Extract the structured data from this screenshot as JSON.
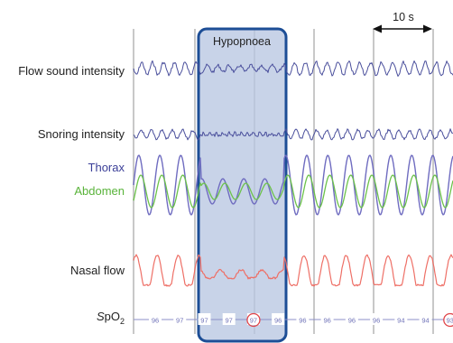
{
  "chart_data": {
    "type": "line",
    "title": "",
    "xlabel": "",
    "ylabel": "",
    "time_scale_label": "10 s",
    "event_label": "Hypopnoea",
    "series": [
      {
        "name": "Flow sound intensity",
        "color": "#4a4f9c"
      },
      {
        "name": "Snoring intensity",
        "color": "#4a4f9c"
      },
      {
        "name": "Thorax",
        "color": "#6f6cc0"
      },
      {
        "name": "Abdomen",
        "color": "#6cc24a"
      },
      {
        "name": "Nasal flow",
        "color": "#ee6f66"
      }
    ],
    "spo2": {
      "values": [
        "96",
        "97",
        "97",
        "97",
        "97",
        "96",
        "96",
        "96",
        "96",
        "96",
        "94",
        "94",
        "93"
      ],
      "highlighted": [
        "97",
        "93"
      ]
    },
    "colors": {
      "label_dark": "#222222",
      "label_thorax": "#3b3f98",
      "label_abdomen": "#59b33a",
      "event_fill": "#b9c7e2",
      "event_border": "#1d4e96",
      "grid": "#c8c8c8",
      "spo2_line": "#8d8fc8",
      "highlight_circle": "#e0454a"
    }
  },
  "spo2_label": {
    "s": "S",
    "po": "pO",
    "sub": "2"
  }
}
